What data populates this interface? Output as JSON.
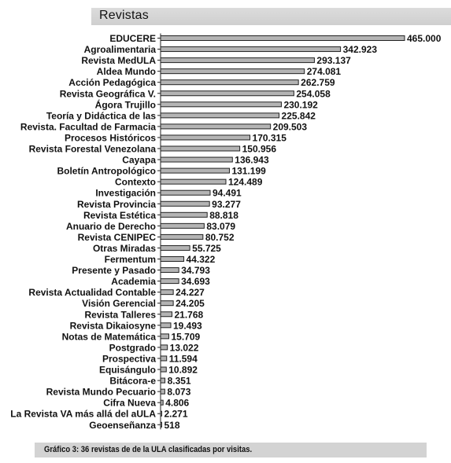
{
  "chart_data": {
    "type": "bar",
    "orientation": "horizontal",
    "title": "Revistas",
    "caption": "Gráfico 3: 36 revistas de de la ULA clasificadas por visitas.",
    "categories": [
      "EDUCERE",
      "Agroalimentaria",
      "Revista MedULA",
      "Aldea Mundo",
      "Acción Pedagógica",
      "Revista Geográfica V.",
      "Ágora Trujillo",
      "Teoría y Didáctica de las",
      "Revista. Facultad de Farmacia",
      "Procesos Históricos",
      "Revista Forestal Venezolana",
      "Cayapa",
      "Boletín Antropológico",
      "Contexto",
      "Investigación",
      "Revista Provincia",
      "Revista Estética",
      "Anuario de Derecho",
      "Revista CENIPEC",
      "Otras Miradas",
      "Fermentum",
      "Presente y Pasado",
      "Academia",
      "Revista Actualidad Contable",
      "Visión Gerencial",
      "Revista Talleres",
      "Revista Dikaiosyne",
      "Notas de Matemática",
      "Postgrado",
      "Prospectiva",
      "Equisángulo",
      "Bitácora-e",
      "Revista Mundo Pecuario",
      "Cifra Nueva",
      "La Revista VA más allá del aULA",
      "Geoenseñanza"
    ],
    "values": [
      465000,
      342923,
      293137,
      274081,
      262759,
      254058,
      230192,
      225842,
      209503,
      170315,
      150956,
      136943,
      131199,
      124489,
      94491,
      93277,
      88818,
      83079,
      80752,
      55725,
      44322,
      34793,
      34693,
      24227,
      24205,
      21768,
      19493,
      15709,
      13022,
      11594,
      10892,
      8351,
      8073,
      4806,
      2271,
      518
    ],
    "value_labels": [
      "465.000",
      "342.923",
      "293.137",
      "274.081",
      "262.759",
      "254.058",
      "230.192",
      "225.842",
      "209.503",
      "170.315",
      "150.956",
      "136.943",
      "131.199",
      "124.489",
      "94.491",
      "93.277",
      "88.818",
      "83.079",
      "80.752",
      "55.725",
      "44.322",
      "34.793",
      "34.693",
      "24.227",
      "24.205",
      "21.768",
      "19.493",
      "15.709",
      "13.022",
      "11.594",
      "10.892",
      "8.351",
      "8.073",
      "4.806",
      "2.271",
      "518"
    ],
    "xlim": [
      0,
      465000
    ],
    "grid": false,
    "legend": "none",
    "bar_color": "#b4b4b4"
  }
}
